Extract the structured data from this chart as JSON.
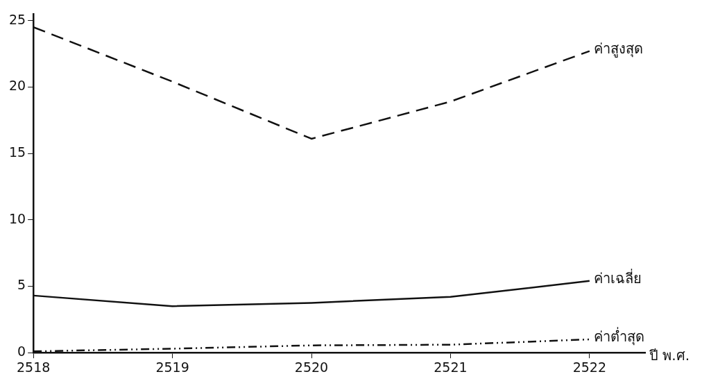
{
  "chart_data": {
    "type": "line",
    "xlabel": "ปี พ.ศ.",
    "x": [
      2518,
      2519,
      2520,
      2521,
      2522
    ],
    "xlim": [
      2518,
      2522.4
    ],
    "xticks": [
      2518,
      2519,
      2520,
      2521,
      2522
    ],
    "ylim": [
      0,
      25.5
    ],
    "yticks": [
      0,
      5,
      10,
      15,
      20,
      25
    ],
    "grid": false,
    "legend": false,
    "marker": "none",
    "series": [
      {
        "name": "ค่าสูงสุด",
        "color": "#111111",
        "line_style": "dashed",
        "values": [
          24.5,
          20.4,
          16.1,
          18.9,
          22.7
        ]
      },
      {
        "name": "ค่าเฉลี่ย",
        "color": "#111111",
        "line_style": "solid",
        "values": [
          4.3,
          3.5,
          3.75,
          4.2,
          5.4
        ]
      },
      {
        "name": "ค่าต่ำสุด",
        "color": "#111111",
        "line_style": "dotted",
        "values": [
          0.1,
          0.3,
          0.55,
          0.6,
          1.0
        ]
      }
    ]
  }
}
